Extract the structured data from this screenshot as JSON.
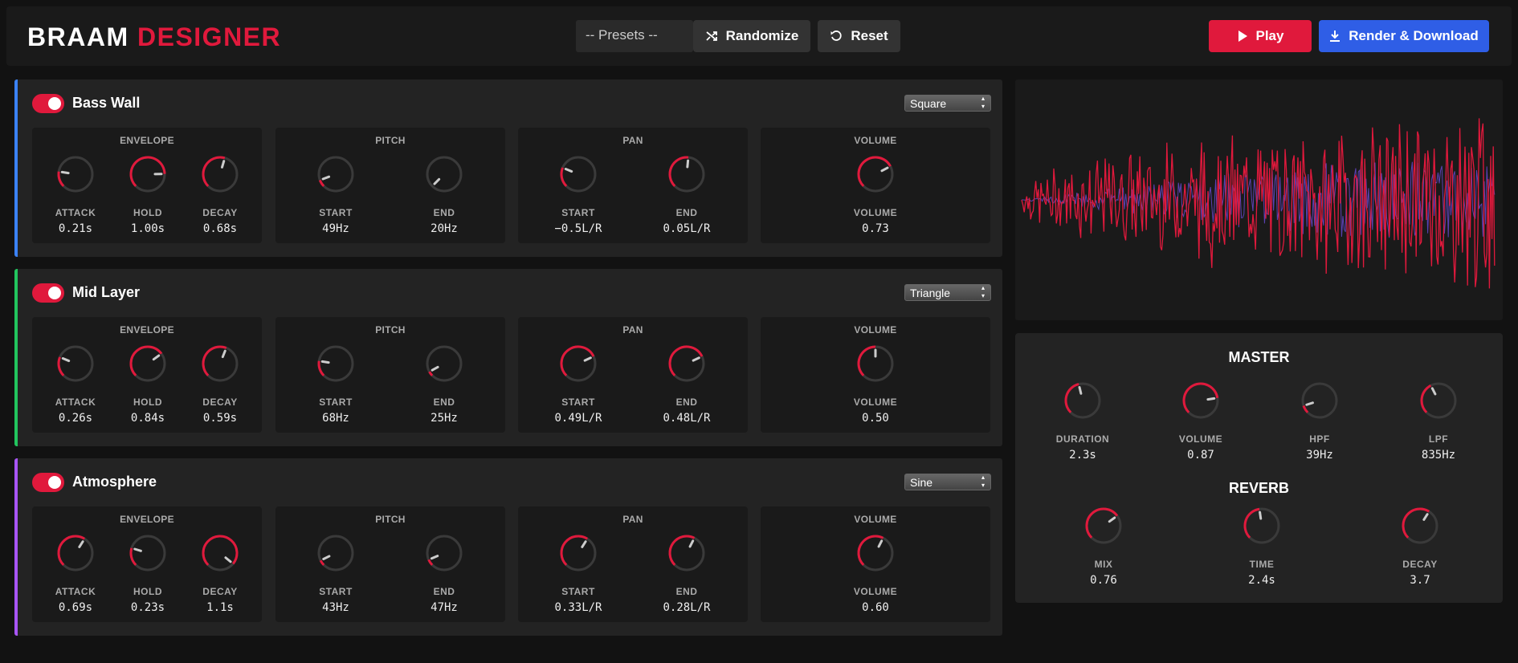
{
  "header": {
    "logo_part1": "BRAAM",
    "logo_part2": "DESIGNER",
    "presets_value": "-- Presets --",
    "randomize_label": "Randomize",
    "reset_label": "Reset",
    "play_label": "Play",
    "render_label": "Render & Download"
  },
  "colors": {
    "accent": "#e0193c",
    "blue": "#2f5ee6",
    "bass": "#3b82f6",
    "mid": "#22c55e",
    "atmo": "#a855f7"
  },
  "layers": [
    {
      "name": "Bass Wall",
      "waveform": "Square",
      "color": "#3b82f6",
      "panels": [
        {
          "title": "ENVELOPE",
          "knobs": [
            {
              "label": "ATTACK",
              "value": "0.21s",
              "level": 0.2
            },
            {
              "label": "HOLD",
              "value": "1.00s",
              "level": 0.83
            },
            {
              "label": "DECAY",
              "value": "0.68s",
              "level": 0.56
            }
          ]
        },
        {
          "title": "PITCH",
          "knobs": [
            {
              "label": "START",
              "value": "49Hz",
              "level": 0.09
            },
            {
              "label": "END",
              "value": "20Hz",
              "level": 0.0
            }
          ]
        },
        {
          "title": "PAN",
          "knobs": [
            {
              "label": "START",
              "value": "−0.5L/R",
              "level": 0.25
            },
            {
              "label": "END",
              "value": "0.05L/R",
              "level": 0.52
            }
          ]
        },
        {
          "title": "VOLUME",
          "knobs": [
            {
              "label": "VOLUME",
              "value": "0.73",
              "level": 0.73
            }
          ]
        }
      ]
    },
    {
      "name": "Mid Layer",
      "waveform": "Triangle",
      "color": "#22c55e",
      "panels": [
        {
          "title": "ENVELOPE",
          "knobs": [
            {
              "label": "ATTACK",
              "value": "0.26s",
              "level": 0.25
            },
            {
              "label": "HOLD",
              "value": "0.84s",
              "level": 0.7
            },
            {
              "label": "DECAY",
              "value": "0.59s",
              "level": 0.58
            }
          ]
        },
        {
          "title": "PITCH",
          "knobs": [
            {
              "label": "START",
              "value": "68Hz",
              "level": 0.2
            },
            {
              "label": "END",
              "value": "25Hz",
              "level": 0.06
            }
          ]
        },
        {
          "title": "PAN",
          "knobs": [
            {
              "label": "START",
              "value": "0.49L/R",
              "level": 0.74
            },
            {
              "label": "END",
              "value": "0.48L/R",
              "level": 0.74
            }
          ]
        },
        {
          "title": "VOLUME",
          "knobs": [
            {
              "label": "VOLUME",
              "value": "0.50",
              "level": 0.5
            }
          ]
        }
      ]
    },
    {
      "name": "Atmosphere",
      "waveform": "Sine",
      "color": "#a855f7",
      "panels": [
        {
          "title": "ENVELOPE",
          "knobs": [
            {
              "label": "ATTACK",
              "value": "0.69s",
              "level": 0.62
            },
            {
              "label": "HOLD",
              "value": "0.23s",
              "level": 0.23
            },
            {
              "label": "DECAY",
              "value": "1.1s",
              "level": 0.98
            }
          ]
        },
        {
          "title": "PITCH",
          "knobs": [
            {
              "label": "START",
              "value": "43Hz",
              "level": 0.07
            },
            {
              "label": "END",
              "value": "47Hz",
              "level": 0.08
            }
          ]
        },
        {
          "title": "PAN",
          "knobs": [
            {
              "label": "START",
              "value": "0.33L/R",
              "level": 0.62
            },
            {
              "label": "END",
              "value": "0.28L/R",
              "level": 0.6
            }
          ]
        },
        {
          "title": "VOLUME",
          "knobs": [
            {
              "label": "VOLUME",
              "value": "0.60",
              "level": 0.6
            }
          ]
        }
      ]
    }
  ],
  "master": {
    "title": "MASTER",
    "knobs": [
      {
        "label": "DURATION",
        "value": "2.3s",
        "level": 0.45
      },
      {
        "label": "VOLUME",
        "value": "0.87",
        "level": 0.8
      },
      {
        "label": "HPF",
        "value": "39Hz",
        "level": 0.1
      },
      {
        "label": "LPF",
        "value": "835Hz",
        "level": 0.4
      }
    ]
  },
  "reverb": {
    "title": "REVERB",
    "knobs": [
      {
        "label": "MIX",
        "value": "0.76",
        "level": 0.7
      },
      {
        "label": "TIME",
        "value": "2.4s",
        "level": 0.47
      },
      {
        "label": "DECAY",
        "value": "3.7",
        "level": 0.62
      }
    ]
  }
}
